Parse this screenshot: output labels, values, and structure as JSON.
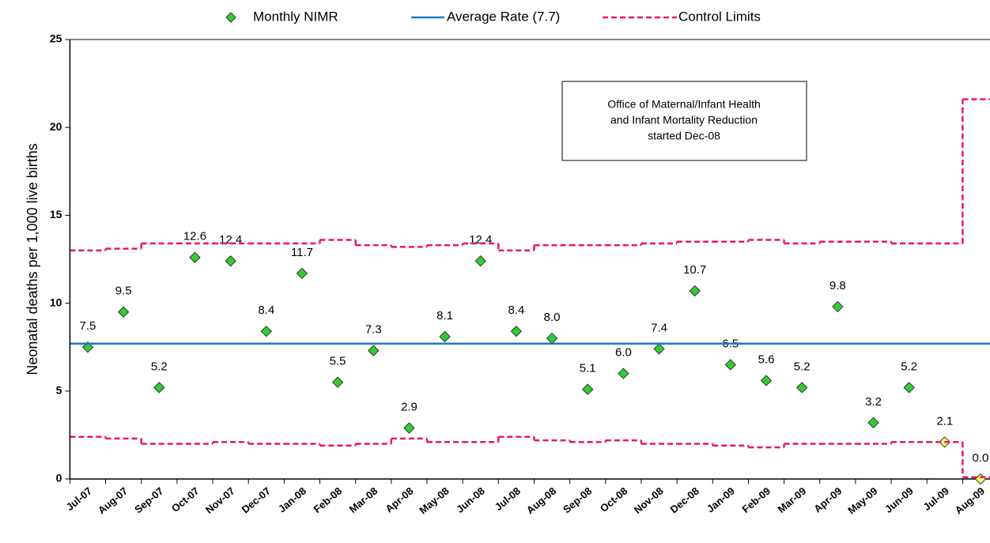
{
  "chart_data": {
    "type": "control",
    "y_axis_label": "Neonatal deaths per 1,000 live births",
    "annotation": [
      "Office of Maternal/Infant Health",
      "and Infant Mortality Reduction",
      "started Dec-08"
    ],
    "categories": [
      "Jul-07",
      "Aug-07",
      "Sep-07",
      "Oct-07",
      "Nov-07",
      "Dec-07",
      "Jan-08",
      "Feb-08",
      "Mar-08",
      "Apr-08",
      "May-08",
      "Jun-08",
      "Jul-08",
      "Aug-08",
      "Sep-08",
      "Oct-08",
      "Nov-08",
      "Dec-08",
      "Jan-09",
      "Feb-09",
      "Mar-09",
      "Apr-09",
      "May-09",
      "Jun-09",
      "Jul-09",
      "Aug-09"
    ],
    "ylim": [
      0,
      25
    ],
    "yticks": [
      0,
      5,
      10,
      15,
      20,
      25
    ],
    "series": [
      {
        "name": "Monthly NIMR",
        "kind": "points",
        "color": "#33cc33",
        "colors": [
          "#33cc33",
          "#33cc33",
          "#33cc33",
          "#33cc33",
          "#33cc33",
          "#33cc33",
          "#33cc33",
          "#33cc33",
          "#33cc33",
          "#33cc33",
          "#33cc33",
          "#33cc33",
          "#33cc33",
          "#33cc33",
          "#33cc33",
          "#33cc33",
          "#33cc33",
          "#33cc33",
          "#33cc33",
          "#33cc33",
          "#33cc33",
          "#33cc33",
          "#33cc33",
          "#33cc33",
          "#ffff66",
          "#ffff66"
        ],
        "values": [
          7.5,
          9.5,
          5.2,
          12.6,
          12.4,
          8.4,
          11.7,
          5.5,
          7.3,
          2.9,
          8.1,
          12.4,
          8.4,
          8.0,
          5.1,
          6.0,
          7.4,
          10.7,
          6.5,
          5.6,
          5.2,
          9.8,
          3.2,
          5.2,
          2.1,
          0.0
        ],
        "value_labels": [
          "7.5",
          "9.5",
          "5.2",
          "12.6",
          "12.4",
          "8.4",
          "11.7",
          "5.5",
          "7.3",
          "2.9",
          "8.1",
          "12.4",
          "8.4",
          "8.0",
          "5.1",
          "6.0",
          "7.4",
          "10.7",
          "6.5",
          "5.6",
          "5.2",
          "9.8",
          "3.2",
          "5.2",
          "2.1",
          "0.0"
        ]
      },
      {
        "name": "Average Rate (7.7)",
        "kind": "hline",
        "color": "#1f77c8",
        "value": 7.7
      },
      {
        "name": "Control Limits",
        "kind": "step",
        "color": "#e8175d",
        "upper": [
          13.0,
          13.1,
          13.4,
          13.4,
          13.4,
          13.4,
          13.4,
          13.6,
          13.3,
          13.2,
          13.3,
          13.4,
          13.0,
          13.3,
          13.3,
          13.3,
          13.4,
          13.5,
          13.5,
          13.6,
          13.4,
          13.5,
          13.5,
          13.4,
          13.4,
          21.6
        ],
        "lower": [
          2.4,
          2.3,
          2.0,
          2.0,
          2.1,
          2.0,
          2.0,
          1.9,
          2.0,
          2.3,
          2.1,
          2.1,
          2.4,
          2.2,
          2.1,
          2.2,
          2.0,
          2.0,
          1.9,
          1.8,
          2.0,
          2.0,
          2.0,
          2.1,
          2.1,
          0.1
        ]
      }
    ]
  }
}
